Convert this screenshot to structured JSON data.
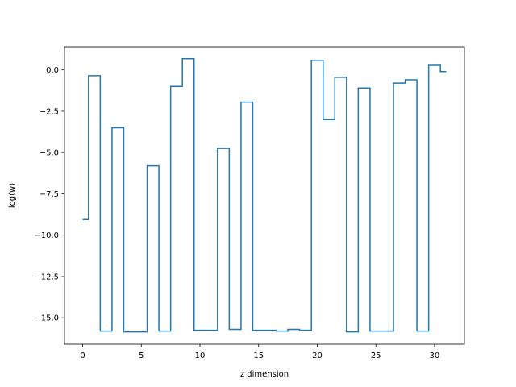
{
  "chart_data": {
    "type": "line",
    "drawstyle": "steps-mid",
    "title": "",
    "xlabel": "z dimension",
    "ylabel": "log(w)",
    "xlim": [
      -1.55,
      32.55
    ],
    "ylim": [
      -16.6,
      1.4
    ],
    "xticks": [
      0,
      5,
      10,
      15,
      20,
      25,
      30
    ],
    "xtick_labels": [
      "0",
      "5",
      "10",
      "15",
      "20",
      "25",
      "30"
    ],
    "yticks": [
      0.0,
      -2.5,
      -5.0,
      -7.5,
      -10.0,
      -12.5,
      -15.0
    ],
    "ytick_labels": [
      "0.0",
      "−2.5",
      "−5.0",
      "−7.5",
      "−10.0",
      "−12.5",
      "−15.0"
    ],
    "grid": false,
    "legend": "none",
    "series": [
      {
        "color": "#1f77b4",
        "x": [
          0,
          1,
          2,
          3,
          4,
          5,
          6,
          7,
          8,
          9,
          10,
          11,
          12,
          13,
          14,
          15,
          16,
          17,
          18,
          19,
          20,
          21,
          22,
          23,
          24,
          25,
          26,
          27,
          28,
          29,
          30,
          31
        ],
        "y": [
          -9.05,
          -0.35,
          -15.8,
          -3.5,
          -15.85,
          -15.85,
          -5.8,
          -15.8,
          -1.0,
          0.68,
          -15.75,
          -15.75,
          -4.75,
          -15.7,
          -1.95,
          -15.75,
          -15.75,
          -15.8,
          -15.7,
          -15.75,
          0.58,
          -3.0,
          -0.45,
          -15.85,
          -1.1,
          -15.8,
          -15.8,
          -0.8,
          -0.6,
          -15.8,
          0.28,
          -0.1
        ]
      }
    ]
  }
}
